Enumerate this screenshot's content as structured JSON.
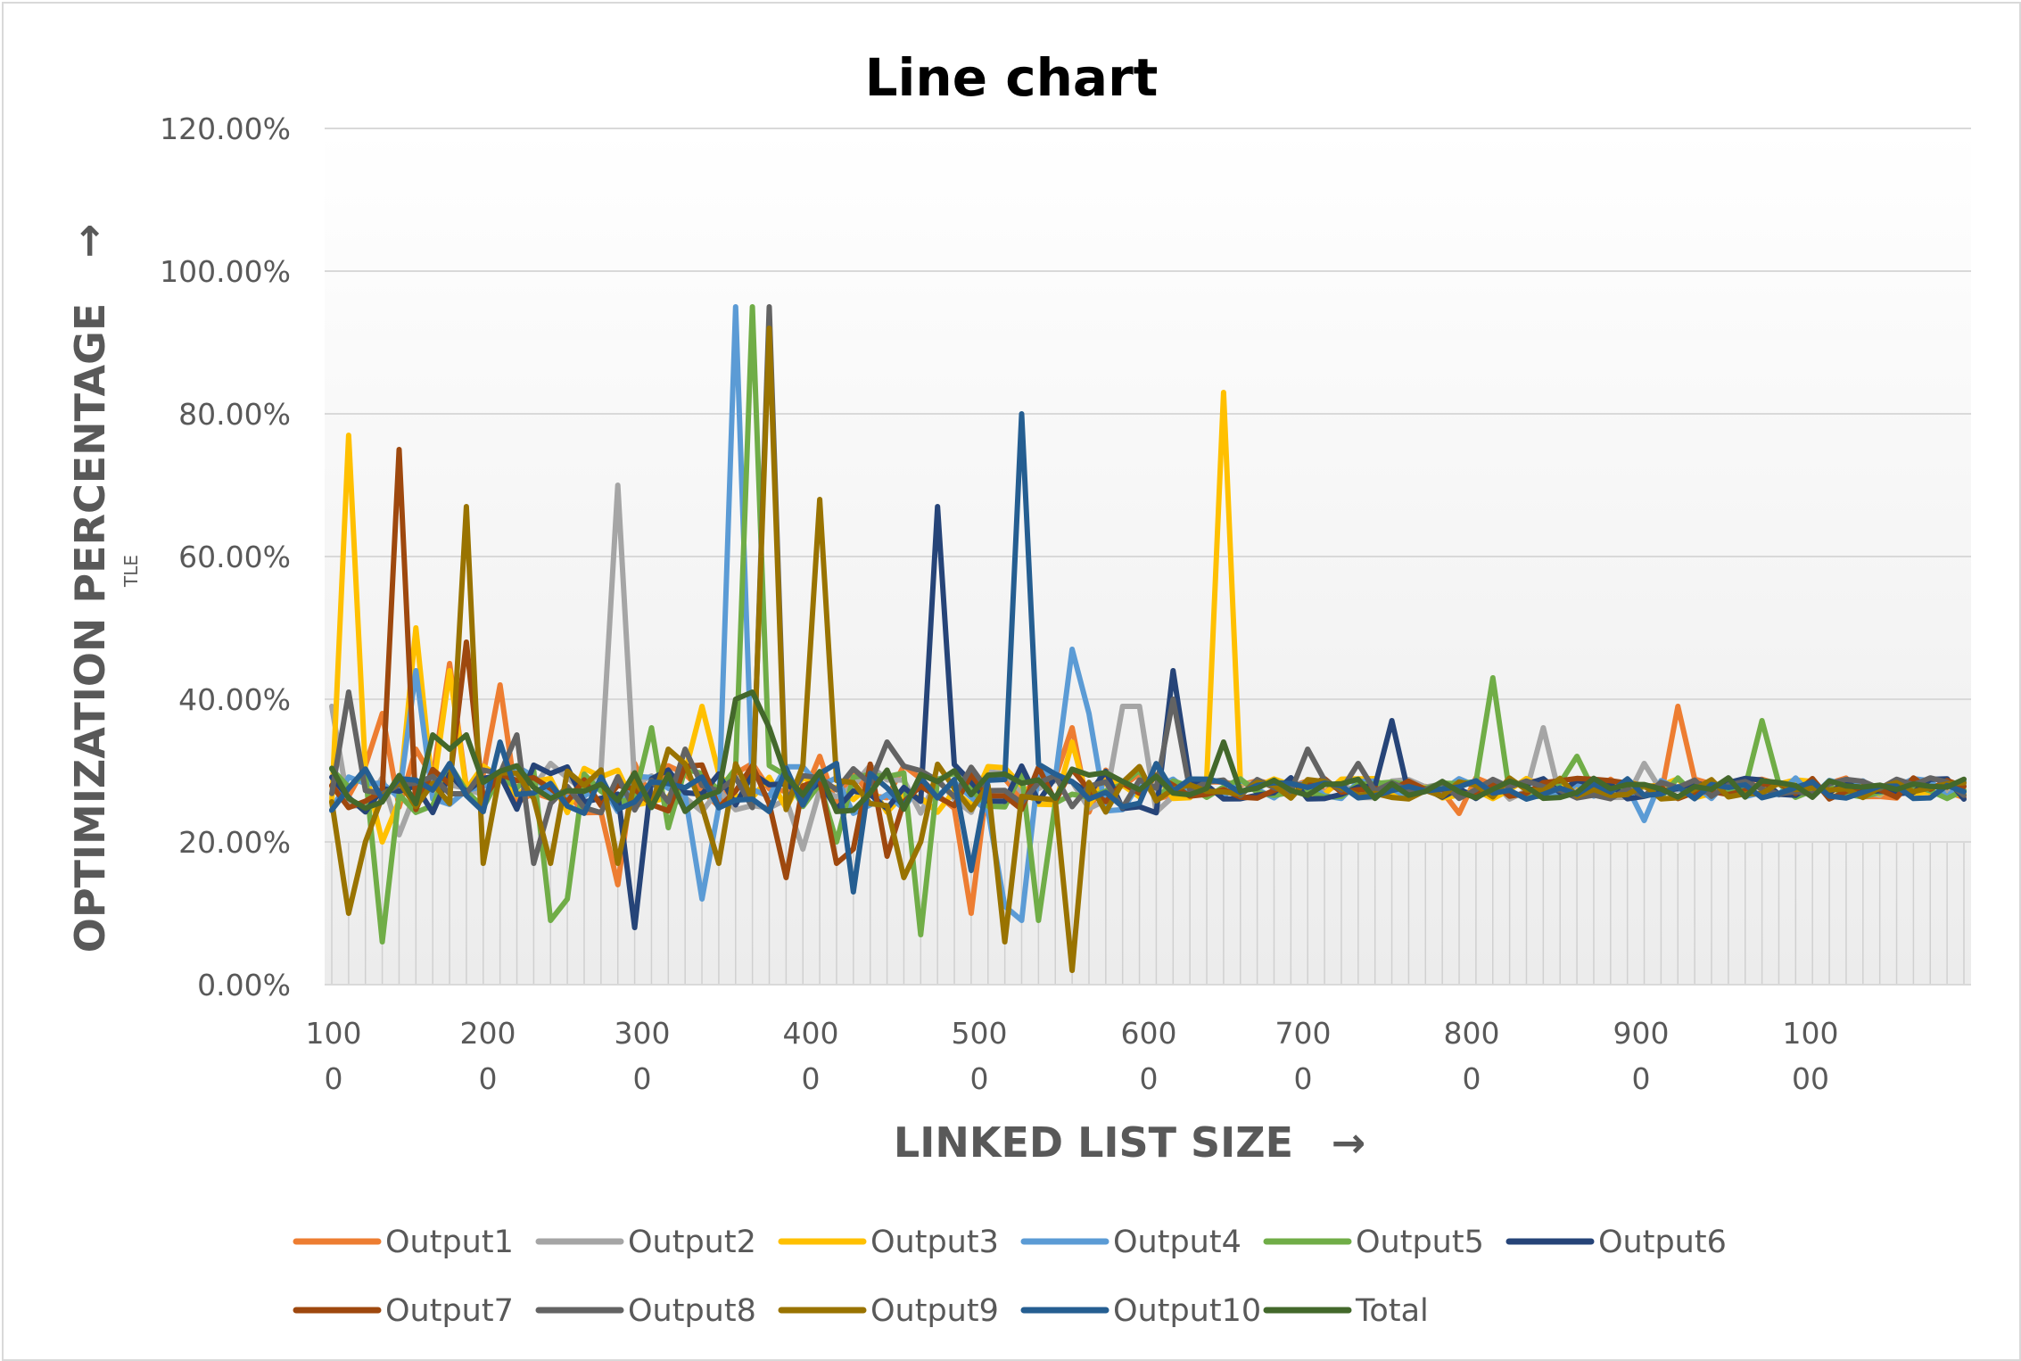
{
  "chart_data": {
    "type": "line",
    "title": "Line chart",
    "xlabel": "LINKED LIST SIZE",
    "ylabel": "OPTIMIZATION PERCENTAGE",
    "ylabel_subscript": "TLE",
    "ylabel_arrow": "→",
    "xlabel_arrow": "→",
    "ylim": [
      0,
      1.2
    ],
    "yticks": [
      "0.00%",
      "20.00%",
      "40.00%",
      "60.00%",
      "80.00%",
      "100.00%",
      "120.00%"
    ],
    "x_tick_labels": [
      [
        "100",
        "0"
      ],
      [
        "200",
        "0"
      ],
      [
        "300",
        "0"
      ],
      [
        "400",
        "0"
      ],
      [
        "500",
        "0"
      ],
      [
        "600",
        "0"
      ],
      [
        "700",
        "0"
      ],
      [
        "800",
        "0"
      ],
      [
        "900",
        "0"
      ],
      [
        "100",
        "00"
      ]
    ],
    "grid": true,
    "legend_position": "bottom",
    "num_points": 98,
    "series": [
      {
        "name": "Output1",
        "color": "#ED7D31",
        "spikes": {
          "3": 0.38,
          "5": 0.33,
          "7": 0.45,
          "10": 0.42,
          "17": 0.14,
          "29": 0.32,
          "38": 0.1,
          "43": 0.29,
          "44": 0.36,
          "67": 0.24,
          "80": 0.39
        }
      },
      {
        "name": "Output2",
        "color": "#A5A5A5",
        "spikes": {
          "0": 0.39,
          "4": 0.21,
          "17": 0.7,
          "28": 0.19,
          "47": 0.39,
          "48": 0.39,
          "72": 0.36,
          "78": 0.31
        }
      },
      {
        "name": "Output3",
        "color": "#FFC000",
        "spikes": {
          "1": 0.77,
          "2": 0.3,
          "3": 0.2,
          "5": 0.5,
          "7": 0.44,
          "22": 0.39,
          "44": 0.34,
          "53": 0.83,
          "57": 0.28
        }
      },
      {
        "name": "Output4",
        "color": "#5B9BD5",
        "spikes": {
          "5": 0.44,
          "22": 0.12,
          "24": 0.95,
          "40": 0.11,
          "41": 0.09,
          "44": 0.47,
          "45": 0.38,
          "78": 0.23
        }
      },
      {
        "name": "Output5",
        "color": "#70AD47",
        "spikes": {
          "3": 0.06,
          "13": 0.09,
          "14": 0.12,
          "19": 0.36,
          "20": 0.22,
          "25": 0.95,
          "30": 0.2,
          "35": 0.07,
          "42": 0.09,
          "69": 0.43,
          "74": 0.32,
          "85": 0.37
        }
      },
      {
        "name": "Output6",
        "color": "#264478",
        "spikes": {
          "18": 0.08,
          "36": 0.67,
          "50": 0.44,
          "63": 0.37
        }
      },
      {
        "name": "Output7",
        "color": "#9E480E",
        "spikes": {
          "4": 0.75,
          "8": 0.48,
          "12": 0.29,
          "27": 0.15,
          "30": 0.17,
          "31": 0.19,
          "33": 0.18
        }
      },
      {
        "name": "Output8",
        "color": "#636363",
        "spikes": {
          "1": 0.41,
          "11": 0.35,
          "12": 0.17,
          "21": 0.33,
          "26": 0.95,
          "33": 0.34,
          "50": 0.4,
          "58": 0.33,
          "61": 0.31
        }
      },
      {
        "name": "Output9",
        "color": "#997300",
        "spikes": {
          "1": 0.1,
          "2": 0.2,
          "8": 0.67,
          "9": 0.17,
          "13": 0.17,
          "17": 0.17,
          "20": 0.33,
          "23": 0.17,
          "26": 0.92,
          "29": 0.68,
          "34": 0.15,
          "35": 0.2,
          "40": 0.06,
          "44": 0.02
        }
      },
      {
        "name": "Output10",
        "color": "#255E91",
        "spikes": {
          "10": 0.34,
          "25": 0.26,
          "30": 0.31,
          "31": 0.13,
          "34": 0.25,
          "35": 0.29,
          "38": 0.16,
          "41": 0.8,
          "45": 0.26
        }
      },
      {
        "name": "Total",
        "color": "#43682B",
        "spikes": {
          "6": 0.35,
          "7": 0.33,
          "8": 0.35,
          "24": 0.4,
          "25": 0.41,
          "26": 0.36,
          "53": 0.34
        }
      }
    ]
  }
}
